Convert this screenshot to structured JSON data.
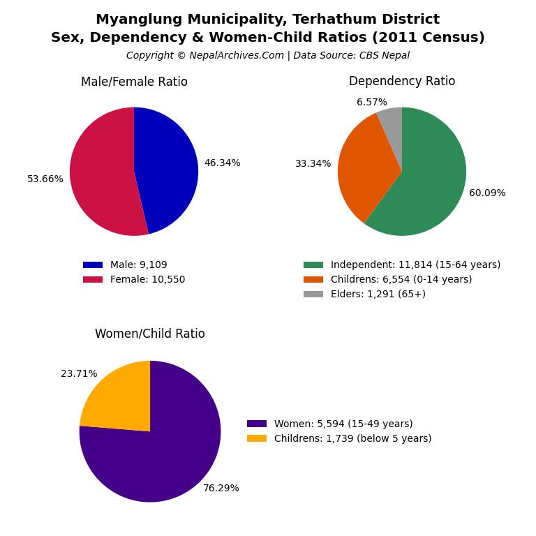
{
  "title": "Myanglung Municipality, Terhathum District",
  "subtitle": "Sex, Dependency & Women-Child Ratios (2011 Census)",
  "annotations": [
    "Copyright © NepalArchives.Com | Data Source: CBS Nepal"
  ],
  "chart_data": [
    {
      "type": "pie",
      "title": "Male/Female Ratio",
      "categories": [
        "Male: 9,109",
        "Female: 10,550"
      ],
      "values": [
        46.34,
        53.66
      ],
      "value_labels": [
        "46.34%",
        "53.66%"
      ],
      "colors": [
        "#0000bb",
        "#cc1144"
      ],
      "data_labels": true,
      "legend": "upper center"
    },
    {
      "type": "pie",
      "title": "Dependency Ratio",
      "categories": [
        "Independent: 11,814 (15-64 years)",
        "Childrens: 6,554 (0-14 years)",
        "Elders: 1,291 (65+)"
      ],
      "values": [
        60.09,
        33.34,
        6.57
      ],
      "value_labels": [
        "60.09%",
        "33.34%",
        "6.57%"
      ],
      "colors": [
        "#2e8b57",
        "#e05500",
        "#999999"
      ],
      "data_labels": true,
      "legend": "upper center"
    },
    {
      "type": "pie",
      "title": "Women/Child Ratio",
      "categories": [
        "Women: 5,594 (15-49 years)",
        "Childrens: 1,739 (below 5 years)"
      ],
      "values": [
        76.29,
        23.71
      ],
      "value_labels": [
        "76.29%",
        "23.71%"
      ],
      "colors": [
        "#440088",
        "#ffaa00"
      ],
      "data_labels": true,
      "legend": "center left"
    }
  ]
}
